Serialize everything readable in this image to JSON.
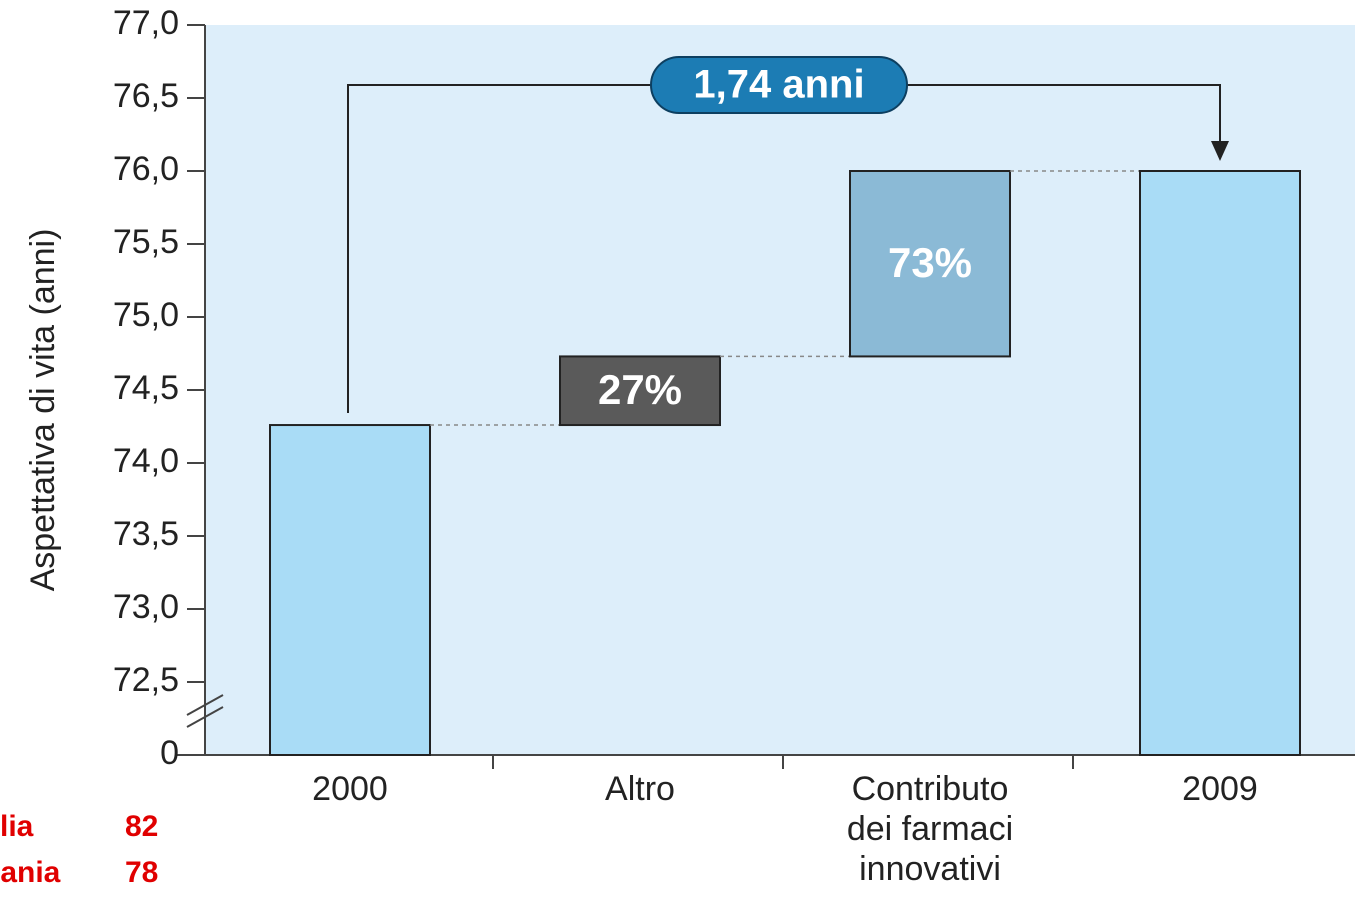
{
  "chart_data": {
    "type": "waterfall",
    "y_label": "Aspettativa di vita (anni)",
    "categories": [
      "2000",
      "Altro",
      "Contributo\ndei farmaci\ninnovativi",
      "2009"
    ],
    "measure": [
      "absolute",
      "relative",
      "relative",
      "total"
    ],
    "values": [
      74.26,
      0.47,
      1.27,
      76.0
    ],
    "colors": [
      "#a9dcf6",
      "#5a5a5a",
      "#8bbad6",
      "#a9dcf6"
    ],
    "bar_texts": [
      null,
      "27%",
      "73%",
      null
    ],
    "annotation": "1,74 anni",
    "ylim": [
      72,
      77
    ],
    "yticks": [
      {
        "value": 72.5,
        "label": "72,5"
      },
      {
        "value": 73,
        "label": "73,0"
      },
      {
        "value": 73.5,
        "label": "73,5"
      },
      {
        "value": 74,
        "label": "74,0"
      },
      {
        "value": 74.5,
        "label": "74,5"
      },
      {
        "value": 75,
        "label": "75,0"
      },
      {
        "value": 75.5,
        "label": "75,5"
      },
      {
        "value": 76,
        "label": "76,0"
      },
      {
        "value": 76.5,
        "label": "76,5"
      },
      {
        "value": 77,
        "label": "77,0"
      }
    ],
    "axis_break_label": "0",
    "side_notes": [
      {
        "name": "lia",
        "value": 82
      },
      {
        "name": "pania",
        "value": 78
      }
    ]
  }
}
